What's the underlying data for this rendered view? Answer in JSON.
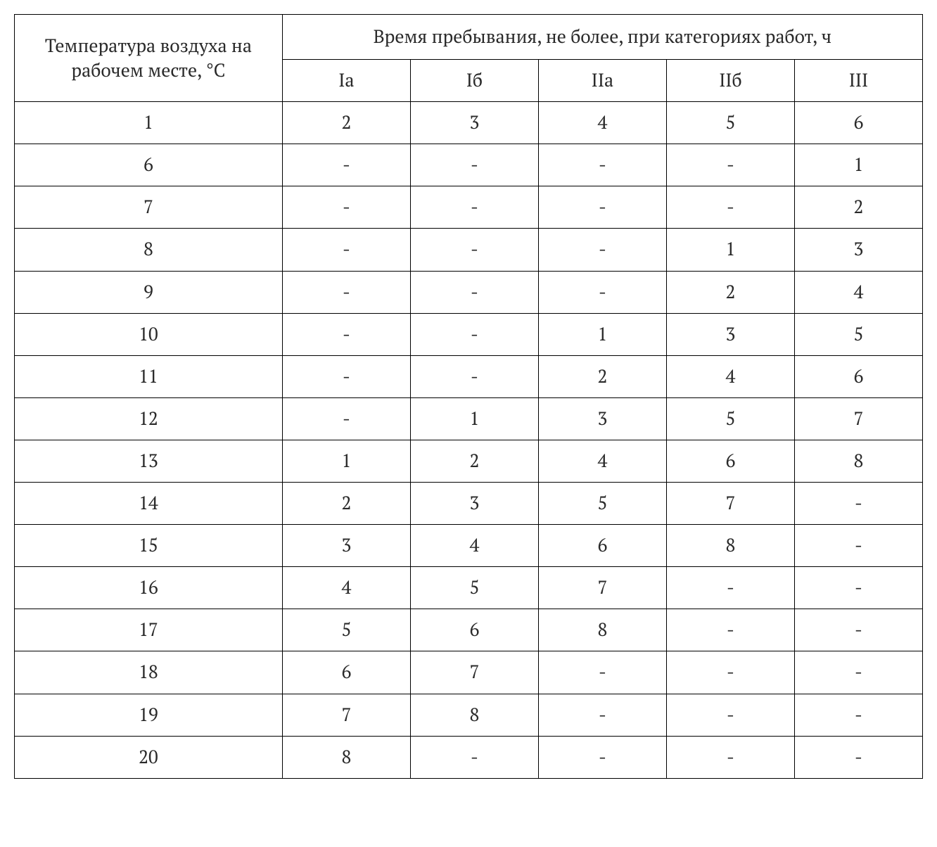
{
  "table": {
    "type": "table",
    "border_color": "#000000",
    "background_color": "#ffffff",
    "text_color": "#2a2a2a",
    "font_family": "PT Serif, Georgia, serif",
    "header_fontsize": 26,
    "cell_fontsize": 26,
    "row_header_label": "Температура воздуха на рабочем месте, °C",
    "group_header_label": "Время пребывания, не более, при категориях работ, ч",
    "sub_headers": [
      "Iа",
      "Iб",
      "IIа",
      "IIб",
      "III"
    ],
    "columns_width_pct": [
      29.5,
      14.1,
      14.1,
      14.1,
      14.1,
      14.1
    ],
    "rows": [
      [
        "1",
        "2",
        "3",
        "4",
        "5",
        "6"
      ],
      [
        "6",
        "-",
        "-",
        "-",
        "-",
        "1"
      ],
      [
        "7",
        "-",
        "-",
        "-",
        "-",
        "2"
      ],
      [
        "8",
        "-",
        "-",
        "-",
        "1",
        "3"
      ],
      [
        "9",
        "-",
        "-",
        "-",
        "2",
        "4"
      ],
      [
        "10",
        "-",
        "-",
        "1",
        "3",
        "5"
      ],
      [
        "11",
        "-",
        "-",
        "2",
        "4",
        "6"
      ],
      [
        "12",
        "-",
        "1",
        "3",
        "5",
        "7"
      ],
      [
        "13",
        "1",
        "2",
        "4",
        "6",
        "8"
      ],
      [
        "14",
        "2",
        "3",
        "5",
        "7",
        "-"
      ],
      [
        "15",
        "3",
        "4",
        "6",
        "8",
        "-"
      ],
      [
        "16",
        "4",
        "5",
        "7",
        "-",
        "-"
      ],
      [
        "17",
        "5",
        "6",
        "8",
        "-",
        "-"
      ],
      [
        "18",
        "6",
        "7",
        "-",
        "-",
        "-"
      ],
      [
        "19",
        "7",
        "8",
        "-",
        "-",
        "-"
      ],
      [
        "20",
        "8",
        "-",
        "-",
        "-",
        "-"
      ]
    ]
  }
}
